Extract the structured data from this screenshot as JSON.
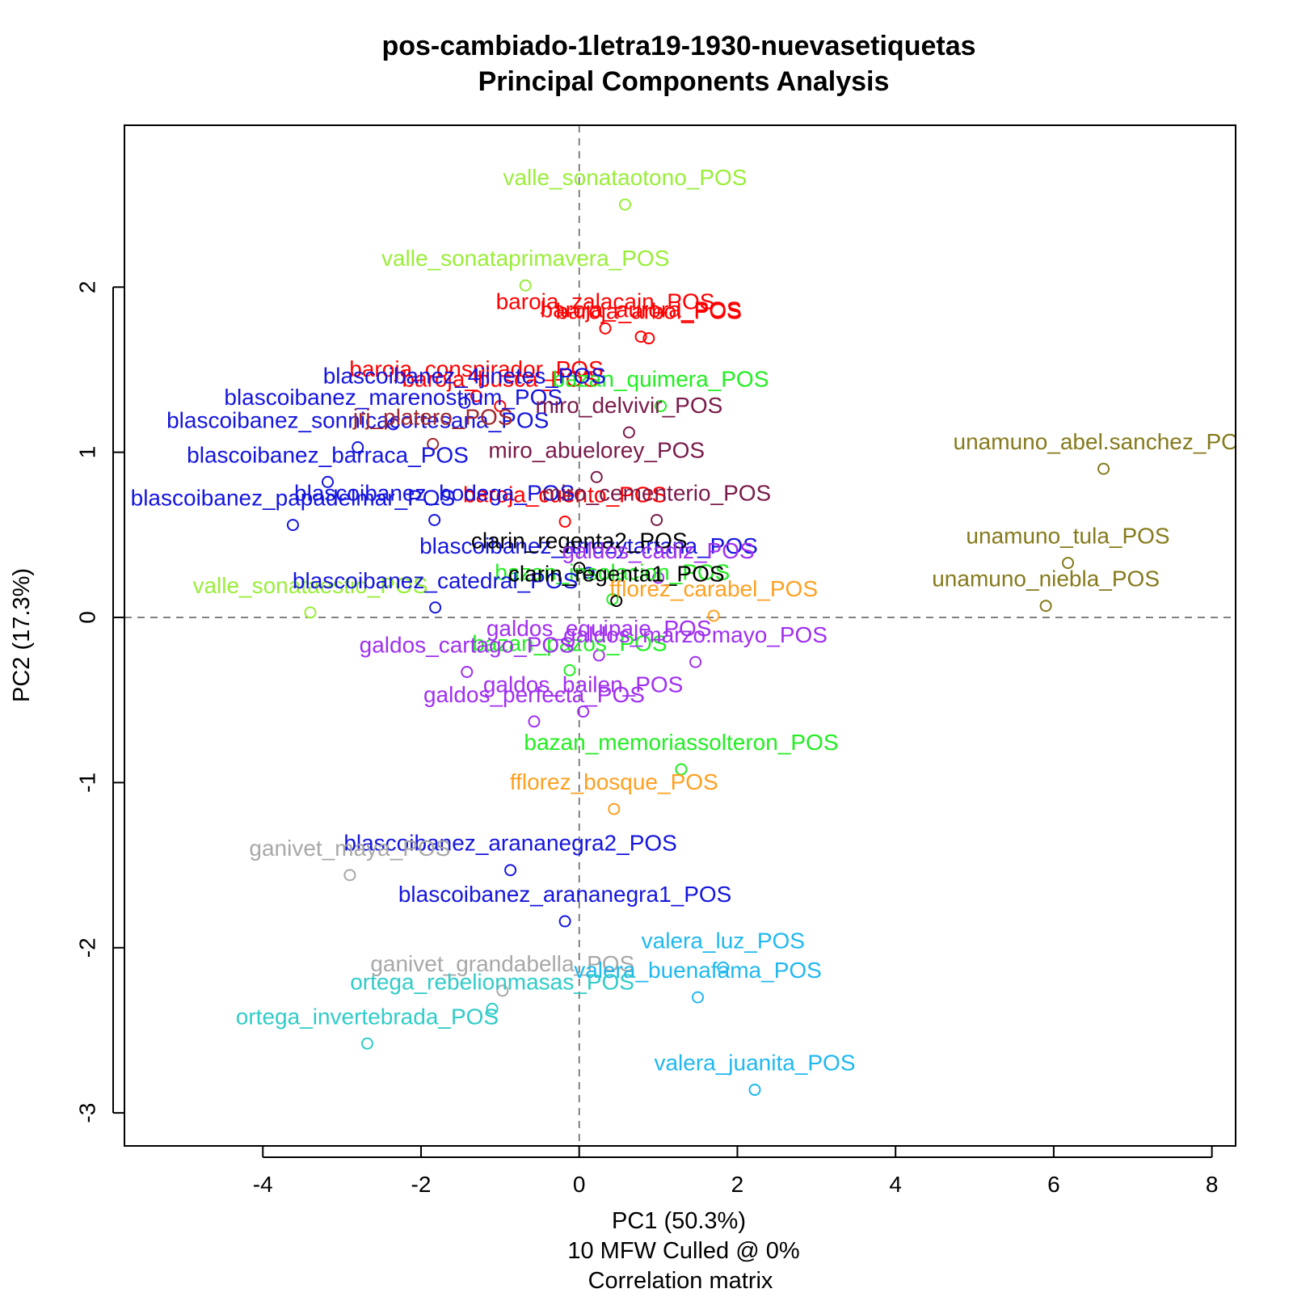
{
  "chart_data": {
    "type": "scatter",
    "title": [
      "pos-cambiado-1letra19-1930-nuevasetiquetas",
      "Principal Components Analysis"
    ],
    "xlabel": "PC1 (50.3%)",
    "ylabel": "PC2 (17.3%)",
    "subtitle": [
      "10 MFW  Culled @ 0%",
      "Correlation matrix"
    ],
    "xlim": [
      -5.75,
      8.3
    ],
    "ylim": [
      -3.2,
      2.98
    ],
    "xticks": [
      -4,
      -2,
      0,
      2,
      4,
      6,
      8
    ],
    "yticks": [
      -3,
      -2,
      -1,
      0,
      1,
      2
    ],
    "reference_lines": {
      "x": 0,
      "y": 0,
      "style": "dashed"
    },
    "grid": false,
    "colors": {
      "valle": "#9aee3a",
      "baroja": "#ff0000",
      "bazan": "#22ee22",
      "blascoibanez": "#1515dd",
      "miro": "#7a1a4a",
      "jrj": "#a0282e",
      "unamuno": "#857a1c",
      "clarin": "#000000",
      "galdos": "#a030f0",
      "fflorez": "#ffa020",
      "ganivet": "#a8a8a8",
      "valera": "#20b8f0",
      "ortega": "#30ccc8"
    },
    "points": [
      {
        "label": "valle_sonataotono_POS",
        "x": 0.58,
        "y": 2.5,
        "group": "valle"
      },
      {
        "label": "valle_sonataprimavera_POS",
        "x": -0.68,
        "y": 2.01,
        "group": "valle"
      },
      {
        "label": "valle_sonataestio_POS",
        "x": -3.4,
        "y": 0.03,
        "group": "valle"
      },
      {
        "label": "baroja_zalacain_POS",
        "x": 0.33,
        "y": 1.75,
        "group": "baroja"
      },
      {
        "label": "baroja_arbol_POS",
        "x": 0.88,
        "y": 1.69,
        "group": "baroja"
      },
      {
        "label": "baroja_aurora_POS",
        "x": 0.78,
        "y": 1.7,
        "group": "baroja"
      },
      {
        "label": "baroja_busca_POS",
        "x": -1.0,
        "y": 1.28,
        "group": "baroja"
      },
      {
        "label": "baroja_conspirador_POS",
        "x": -1.3,
        "y": 1.34,
        "group": "baroja"
      },
      {
        "label": "baroja_cuento_POS",
        "x": -0.18,
        "y": 0.58,
        "group": "baroja"
      },
      {
        "label": "bazan_quimera_POS",
        "x": 1.03,
        "y": 1.28,
        "group": "bazan"
      },
      {
        "label": "bazan_insolacion_POS",
        "x": 0.42,
        "y": 0.11,
        "group": "bazan"
      },
      {
        "label": "bazan_pazos_POS",
        "x": -0.12,
        "y": -0.32,
        "group": "bazan"
      },
      {
        "label": "bazan_memoriassolteron_POS",
        "x": 1.29,
        "y": -0.92,
        "group": "bazan"
      },
      {
        "label": "blascoibanez_4jinetes_POS",
        "x": -1.45,
        "y": 1.3,
        "group": "blascoibanez"
      },
      {
        "label": "blascoibanez_marenostrum_POS",
        "x": -2.35,
        "y": 1.17,
        "group": "blascoibanez"
      },
      {
        "label": "blascoibanez_sonnicacortesana_POS",
        "x": -2.8,
        "y": 1.03,
        "group": "blascoibanez"
      },
      {
        "label": "blascoibanez_papadelmar_POS",
        "x": -3.62,
        "y": 0.56,
        "group": "blascoibanez"
      },
      {
        "label": "blascoibanez_barraca_POS",
        "x": -3.18,
        "y": 0.82,
        "group": "blascoibanez"
      },
      {
        "label": "blascoibanez_bodega_POS",
        "x": -1.83,
        "y": 0.59,
        "group": "blascoibanez"
      },
      {
        "label": "blascoibanez_catedral_POS",
        "x": -1.82,
        "y": 0.06,
        "group": "blascoibanez"
      },
      {
        "label": "blascoibanez_arrozytartana_POS",
        "x": 0.12,
        "y": 0.27,
        "group": "blascoibanez"
      },
      {
        "label": "blascoibanez_arananegra2_POS",
        "x": -0.87,
        "y": -1.53,
        "group": "blascoibanez"
      },
      {
        "label": "blascoibanez_arananegra1_POS",
        "x": -0.18,
        "y": -1.84,
        "group": "blascoibanez"
      },
      {
        "label": "miro_delvivir_POS",
        "x": 0.63,
        "y": 1.12,
        "group": "miro"
      },
      {
        "label": "miro_abuelorey_POS",
        "x": 0.22,
        "y": 0.85,
        "group": "miro"
      },
      {
        "label": "miro_cementerio_POS",
        "x": 0.98,
        "y": 0.59,
        "group": "miro"
      },
      {
        "label": "jrj_platero_POS",
        "x": -1.85,
        "y": 1.05,
        "group": "jrj"
      },
      {
        "label": "unamuno_abel.sanchez_POS",
        "x": 6.63,
        "y": 0.9,
        "group": "unamuno"
      },
      {
        "label": "unamuno_tula_POS",
        "x": 6.18,
        "y": 0.33,
        "group": "unamuno"
      },
      {
        "label": "unamuno_niebla_POS",
        "x": 5.9,
        "y": 0.07,
        "group": "unamuno"
      },
      {
        "label": "clarin_regenta2_POS",
        "x": 0.0,
        "y": 0.3,
        "group": "clarin"
      },
      {
        "label": "clarin_regenta1_POS",
        "x": 0.47,
        "y": 0.1,
        "group": "clarin"
      },
      {
        "label": "galdos_cadiz_POS",
        "x": 1.0,
        "y": 0.24,
        "group": "galdos"
      },
      {
        "label": "galdos_equipaje_POS",
        "x": 0.25,
        "y": -0.23,
        "group": "galdos"
      },
      {
        "label": "galdos_marzo.mayo_POS",
        "x": 1.47,
        "y": -0.27,
        "group": "galdos"
      },
      {
        "label": "galdos_cartago_POS",
        "x": -1.42,
        "y": -0.33,
        "group": "galdos"
      },
      {
        "label": "galdos_bailen_POS",
        "x": 0.05,
        "y": -0.57,
        "group": "galdos"
      },
      {
        "label": "galdos_perfecta_POS",
        "x": -0.57,
        "y": -0.63,
        "group": "galdos"
      },
      {
        "label": "fflorez_carabel_POS",
        "x": 1.7,
        "y": 0.01,
        "group": "fflorez"
      },
      {
        "label": "fflorez_bosque_POS",
        "x": 0.44,
        "y": -1.16,
        "group": "fflorez"
      },
      {
        "label": "ganivet_maya_POS",
        "x": -2.9,
        "y": -1.56,
        "group": "ganivet"
      },
      {
        "label": "ganivet_grandabella_POS",
        "x": -0.97,
        "y": -2.26,
        "group": "ganivet"
      },
      {
        "label": "valera_luz_POS",
        "x": 1.82,
        "y": -2.12,
        "group": "valera"
      },
      {
        "label": "valera_buenafama_POS",
        "x": 1.5,
        "y": -2.3,
        "group": "valera"
      },
      {
        "label": "valera_juanita_POS",
        "x": 2.22,
        "y": -2.86,
        "group": "valera"
      },
      {
        "label": "ortega_rebelionmasas_POS",
        "x": -1.1,
        "y": -2.37,
        "group": "ortega"
      },
      {
        "label": "ortega_invertebrada_POS",
        "x": -2.68,
        "y": -2.58,
        "group": "ortega"
      }
    ]
  }
}
